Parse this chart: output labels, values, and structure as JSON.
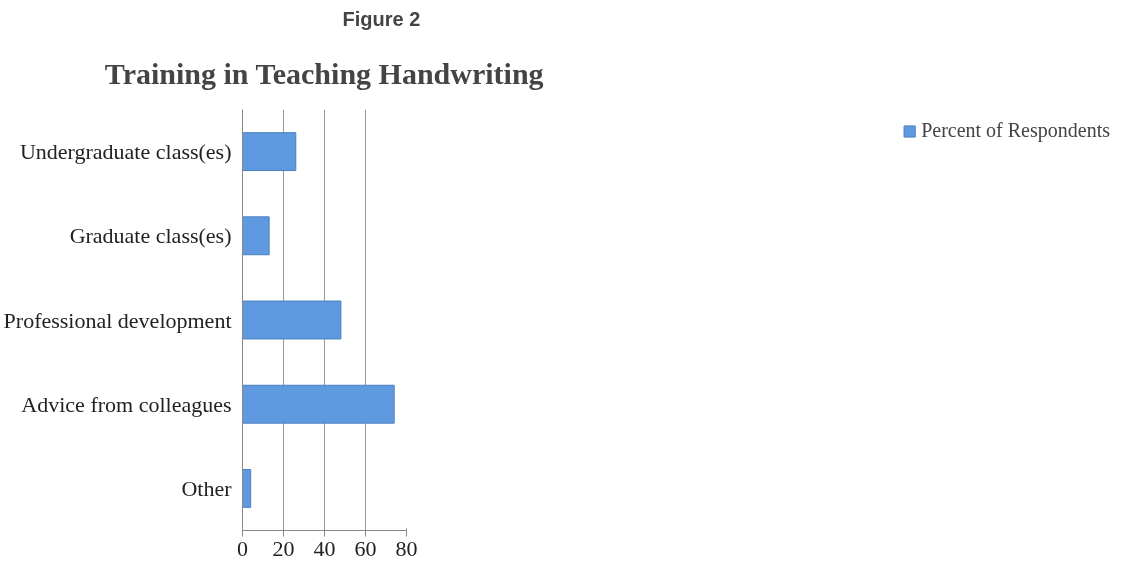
{
  "chart_data": {
    "type": "bar",
    "orientation": "horizontal",
    "title": "Training in Teaching Handwriting",
    "annotations": [
      "Figure 2"
    ],
    "categories": [
      "Undergraduate class(es)",
      "Graduate class(es)",
      "Professional development",
      "Advice from colleagues",
      "Other"
    ],
    "series": [
      {
        "name": "Percent of Respondents",
        "color": "#5f9ae0",
        "values": [
          26,
          13,
          48,
          74,
          4
        ]
      }
    ],
    "xlim": [
      0,
      80
    ],
    "xticks": [
      0,
      20,
      40,
      60,
      80
    ],
    "grid": "x",
    "legend": "right"
  }
}
